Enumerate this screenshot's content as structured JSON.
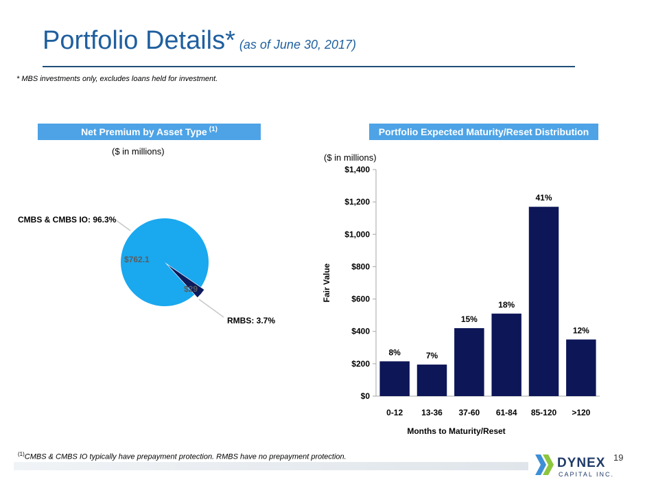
{
  "header": {
    "title": "Portfolio Details*",
    "subtitle": "(as of June 30, 2017)",
    "footnote": "* MBS investments only, excludes loans held for investment."
  },
  "left_panel": {
    "banner": "Net Premium by Asset Type",
    "banner_sup": "(1)",
    "units": "($ in millions)"
  },
  "right_panel": {
    "banner": "Portfolio Expected Maturity/Reset Distribution",
    "units": "($ in millions)"
  },
  "chart_data": [
    {
      "type": "pie",
      "title": "Net Premium by Asset Type",
      "slices": [
        {
          "name": "CMBS & CMBS IO",
          "label": "CMBS & CMBS IO: 96.3%",
          "value": 762.1,
          "value_label": "$762.1",
          "percent": 96.3,
          "color": "#1aa8ef"
        },
        {
          "name": "RMBS",
          "label": "RMBS: 3.7%",
          "value": 29,
          "value_label": "$29",
          "percent": 3.7,
          "color": "#0d1b5c"
        }
      ]
    },
    {
      "type": "bar",
      "title": "Portfolio Expected Maturity/Reset Distribution",
      "categories": [
        "0-12",
        "13-36",
        "37-60",
        "61-84",
        "85-120",
        ">120"
      ],
      "values": [
        215,
        195,
        420,
        510,
        1170,
        350
      ],
      "data_labels": [
        "8%",
        "7%",
        "15%",
        "18%",
        "41%",
        "12%"
      ],
      "ylabel": "Fair Value",
      "xlabel": "Months to Maturity/Reset",
      "ylim": [
        0,
        1400
      ],
      "yticks": [
        0,
        200,
        400,
        600,
        800,
        1000,
        1200,
        1400
      ],
      "ytick_labels": [
        "$0",
        "$200",
        "$400",
        "$600",
        "$800",
        "$1,000",
        "$1,200",
        "$1,400"
      ],
      "bar_color": "#0d1657"
    }
  ],
  "footer": {
    "note_sup": "(1)",
    "note": "CMBS & CMBS IO typically have prepayment protection. RMBS have no prepayment protection.",
    "page_number": "19",
    "logo_name": "DYNEX",
    "logo_sub": "CAPITAL INC."
  }
}
